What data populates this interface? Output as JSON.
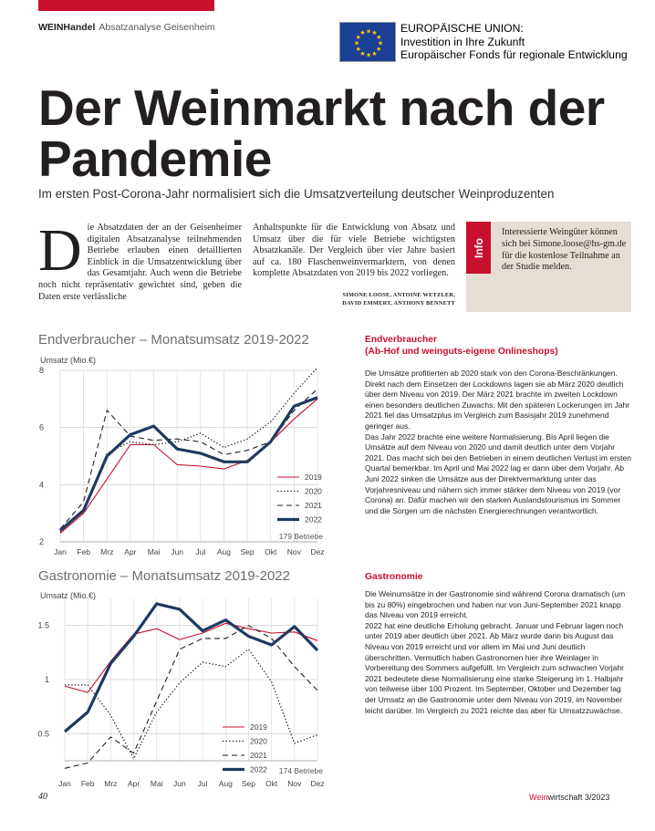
{
  "kicker": {
    "brand": "WEINHandel",
    "section": "Absatzanalyse Geisenheim"
  },
  "eu": {
    "line1": "EUROPÄISCHE UNION:",
    "line2": "Investition in Ihre Zukunft",
    "line3": "Europäischer Fonds für regionale Entwicklung"
  },
  "headline": {
    "line1": "Der Weinmarkt nach der",
    "line2": "Pandemie"
  },
  "subhead": "Im ersten Post-Corona-Jahr normalisiert sich die Umsatzverteilung deutscher Weinproduzenten",
  "intro": {
    "dropcap": "D",
    "col1": "ie Absatzdaten der an der Geisenheimer digitalen Absatzanalyse teilnehmenden Betriebe erlauben einen detaillierten Einblick in die Umsatzentwicklung über das Gesamtjahr. Auch wenn die Betriebe noch nicht repräsentativ gewichtet sind, geben die Daten erste verlässliche",
    "col2": "Anhaltspunkte für die Entwicklung von Absatz und Umsatz über die für viele Betriebe wichtigsten Absatzkanäle. Der Vergleich über vier Jahre basiert auf ca. 180 Flaschenweinvermarktern, von denen komplette Absatzdaten von 2019 bis 2022 vorliegen.",
    "authors_line1": "SIMONE LOOSE, ANTOINE WETZLER,",
    "authors_line2": "DAVID EMMERT, ANTHONY BENNETT"
  },
  "info": {
    "tab": "Info",
    "text": "Interessierte Weingüter können sich bei Simone.loose@hs-gm.de für die kostenlose Teilnahme an der Studie melden."
  },
  "chart1": {
    "title": "Endverbraucher – Monatsumsatz 2019-2022",
    "ylabel": "Umsatz (Mio.€)",
    "note": "179 Betriebe"
  },
  "chart2": {
    "title": "Gastronomie – Monatsumsatz 2019-2022",
    "ylabel": "Umsatz (Mio.€)",
    "note": "174 Betriebe"
  },
  "chart_data": [
    {
      "type": "line",
      "title": "Endverbraucher – Monatsumsatz 2019-2022",
      "ylabel": "Umsatz (Mio.€)",
      "xlabel": "",
      "ylim": [
        2,
        8
      ],
      "yticks": [
        "2",
        "4",
        "6",
        "8"
      ],
      "x": [
        "Jan",
        "Feb",
        "Mrz",
        "Apr",
        "Mai",
        "Jun",
        "Jul",
        "Aug",
        "Sep",
        "Okt",
        "Nov",
        "Dez"
      ],
      "legend_position": "bottom-right",
      "series": [
        {
          "name": "2019",
          "color": "#c8102e",
          "style": "solid",
          "values": [
            2.3,
            3.0,
            4.2,
            5.4,
            5.4,
            4.7,
            4.65,
            4.55,
            4.85,
            5.5,
            6.3,
            7.0
          ]
        },
        {
          "name": "2020",
          "color": "#231f20",
          "style": "dotted",
          "values": [
            2.35,
            3.1,
            5.1,
            5.5,
            5.4,
            5.5,
            5.8,
            5.3,
            5.6,
            6.2,
            7.2,
            8.1
          ]
        },
        {
          "name": "2021",
          "color": "#231f20",
          "style": "dashed",
          "values": [
            2.45,
            3.4,
            6.6,
            5.7,
            5.55,
            5.6,
            5.5,
            5.05,
            5.2,
            5.5,
            6.6,
            7.35
          ]
        },
        {
          "name": "2022",
          "color": "#1f3a5f",
          "style": "thick",
          "values": [
            2.4,
            3.1,
            5.0,
            5.75,
            6.05,
            5.25,
            5.1,
            4.8,
            4.8,
            5.5,
            6.75,
            7.05
          ]
        }
      ]
    },
    {
      "type": "line",
      "title": "Gastronomie – Monatsumsatz 2019-2022",
      "ylabel": "Umsatz (Mio.€)",
      "xlabel": "",
      "ylim": [
        0.25,
        1.75
      ],
      "yticks": [
        "0.5",
        "1",
        "1.5"
      ],
      "x": [
        "Jan",
        "Feb",
        "Mrz",
        "Apr",
        "Mai",
        "Jun",
        "Jul",
        "Aug",
        "Sep",
        "Okt",
        "Nov",
        "Dez"
      ],
      "legend_position": "bottom-right",
      "series": [
        {
          "name": "2019",
          "color": "#c8102e",
          "style": "solid",
          "values": [
            0.94,
            0.88,
            1.17,
            1.42,
            1.47,
            1.37,
            1.43,
            1.52,
            1.47,
            1.43,
            1.44,
            1.36
          ]
        },
        {
          "name": "2020",
          "color": "#231f20",
          "style": "dotted",
          "values": [
            0.95,
            0.95,
            0.67,
            0.27,
            0.7,
            0.97,
            1.16,
            1.12,
            1.28,
            0.98,
            0.41,
            0.49
          ]
        },
        {
          "name": "2021",
          "color": "#231f20",
          "style": "dashed",
          "values": [
            0.18,
            0.23,
            0.47,
            0.32,
            0.8,
            1.28,
            1.38,
            1.38,
            1.5,
            1.38,
            1.12,
            0.9
          ]
        },
        {
          "name": "2022",
          "color": "#1f3a5f",
          "style": "thick",
          "values": [
            0.52,
            0.7,
            1.15,
            1.4,
            1.7,
            1.65,
            1.45,
            1.55,
            1.4,
            1.32,
            1.49,
            1.27
          ]
        }
      ]
    }
  ],
  "section1": {
    "heading1": "Endverbraucher",
    "heading2": "(Ab-Hof und weinguts-eigene Onlineshops)",
    "p1": "Die Umsätze profitierten ab 2020 stark von den Corona-Beschränkungen. Direkt nach dem Einsetzen der Lockdowns lagen sie ab März 2020 deutlich über dem Niveau von 2019. Der März 2021 brachte im zweiten Lockdown einen besonders deutlichen Zuwachs. Mit den späteren Lockerungen im Jahr 2021 fiel das Umsatzplus im Vergleich zum Basisjahr 2019 zunehmend geringer aus.",
    "p2": "Das Jahr 2022 brachte eine weitere Normalisierung. Bis April liegen die Umsätze auf dem Niveau von 2020 und damit deutlich unter dem Vorjahr 2021. Das macht sich bei den Betrieben in einem deutlichen Verlust im ersten Quartal bemerkbar. Im April und Mai 2022 lag er dann über dem Vorjahr. Ab Juni 2022 sinken die Umsätze aus der Direktvermarktung unter das Vorjahresniveau und nähern sich immer stärker dem Niveau von 2019 (vor Corona) an. Dafür machen wir den starken Auslandstourismus im Sommer und die Sorgen um die nächsten Energierechnungen verantwortlich."
  },
  "section2": {
    "heading": "Gastronomie",
    "p1": "Die Weinumsätze in der Gastronomie sind während Corona dramatisch (um bis zu 80%) eingebrochen und haben nur von Juni-September 2021 knapp das Niveau von 2019 erreicht.",
    "p2": "2022 hat eine deutliche Erholung gebracht. Januar und Februar lagen noch unter 2019 aber deutlich über 2021. Ab März wurde dann bis August das Niveau von 2019 erreicht und vor allem im Mai und Juni deutlich überschritten. Vermutlich haben Gastronomen hier ihre Weinlager in Vorbereitung des Sommers aufgefüllt. Im Vergleich zum schwachen Vorjahr 2021 bedeutete diese Normalisierung eine starke Steigerung im 1. Halbjahr von teilweise über 100 Prozent. Im September, Oktober und Dezember lag der Umsatz an die Gastronomie unter dem Niveau von 2019, im November leicht darüber. Im Vergleich zu 2021 reichte das aber für Umsatzzuwächse."
  },
  "footer": {
    "page": "40",
    "brand_a": "Wein",
    "brand_b": "wirtschaft",
    "issue": "3/2023"
  }
}
